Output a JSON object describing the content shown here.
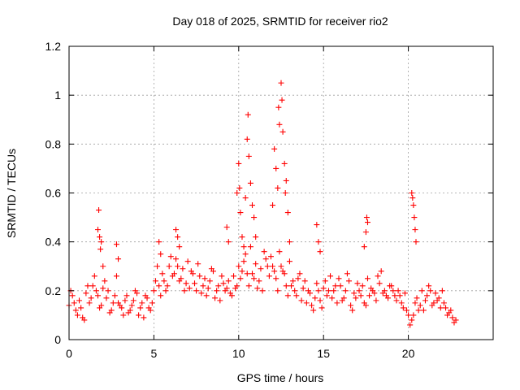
{
  "chart_data": {
    "type": "scatter",
    "title": "Day 018 of 2025, SRMTID for receiver rio2",
    "xlabel": "GPS time / hours",
    "ylabel": "SRMTID / TECUs",
    "xlim": [
      0,
      25
    ],
    "ylim": [
      0,
      1.2
    ],
    "xticks": [
      0,
      5,
      10,
      15,
      20
    ],
    "xtick_labels": [
      "0",
      "5",
      "10",
      "15",
      "20"
    ],
    "yticks": [
      0,
      0.2,
      0.4,
      0.6,
      0.8,
      1,
      1.2
    ],
    "ytick_labels": [
      "0",
      "0.2",
      "0.4",
      "0.6",
      "0.8",
      "1",
      "1.2"
    ],
    "grid": true,
    "marker": "+",
    "series": [
      {
        "name": "SRMTID",
        "color": "#ff0000",
        "x": [
          0.0,
          0.2,
          0.4,
          0.6,
          0.8,
          1.0,
          1.2,
          1.4,
          1.6,
          1.8,
          2.0,
          2.2,
          2.4,
          2.6,
          2.8,
          3.0,
          3.2,
          3.4,
          3.6,
          3.8,
          4.0,
          4.2,
          4.4,
          4.6,
          4.8,
          5.0,
          5.2,
          5.4,
          5.6,
          5.8,
          6.0,
          6.2,
          6.4,
          6.6,
          6.8,
          7.0,
          7.2,
          7.4,
          7.6,
          7.8,
          8.0,
          8.2,
          8.4,
          8.6,
          8.8,
          9.0,
          9.2,
          9.4,
          9.6,
          9.8,
          10.0,
          10.2,
          10.4,
          10.6,
          10.8,
          11.0,
          11.2,
          11.4,
          11.6,
          11.8,
          12.0,
          12.2,
          12.4,
          12.6,
          12.8,
          13.0,
          13.2,
          13.4,
          13.6,
          13.8,
          14.0,
          14.2,
          14.4,
          14.6,
          14.8,
          15.0,
          15.2,
          15.4,
          15.6,
          15.8,
          16.0,
          16.2,
          16.4,
          16.6,
          16.8,
          17.0,
          17.2,
          17.4,
          17.6,
          17.8,
          18.0,
          18.2,
          18.4,
          18.6,
          18.8,
          19.0,
          19.2,
          19.4,
          19.6,
          19.8,
          20.0,
          20.2,
          20.4,
          20.6,
          20.8,
          21.0,
          21.2,
          21.4,
          21.6,
          21.8,
          22.0,
          22.2,
          22.4,
          22.6,
          22.8,
          0.1,
          0.3,
          0.5,
          0.7,
          0.9,
          1.1,
          1.3,
          1.5,
          1.7,
          1.9,
          2.1,
          2.3,
          2.5,
          2.7,
          2.9,
          3.1,
          3.3,
          3.5,
          3.7,
          3.9,
          4.1,
          4.3,
          4.5,
          4.7,
          4.9,
          5.1,
          5.3,
          5.5,
          5.7,
          5.9,
          6.1,
          6.3,
          6.5,
          6.7,
          6.9,
          7.1,
          7.3,
          7.5,
          7.7,
          7.9,
          8.1,
          8.3,
          8.5,
          8.7,
          8.9,
          9.1,
          9.3,
          9.5,
          9.7,
          9.9,
          10.1,
          10.3,
          10.5,
          10.7,
          10.9,
          11.1,
          11.3,
          11.5,
          11.7,
          11.9,
          12.1,
          12.3,
          12.5,
          12.7,
          12.9,
          13.1,
          13.3,
          13.5,
          13.7,
          13.9,
          14.1,
          14.3,
          14.5,
          14.7,
          14.9,
          15.1,
          15.3,
          15.5,
          15.7,
          15.9,
          16.1,
          16.3,
          16.5,
          16.7,
          16.9,
          17.1,
          17.3,
          17.5,
          17.7,
          17.9,
          18.1,
          18.3,
          18.5,
          18.7,
          18.9,
          19.1,
          19.3,
          19.5,
          19.7,
          19.9,
          20.1,
          20.3,
          20.5,
          20.7,
          20.9,
          21.1,
          21.3,
          21.5,
          21.7,
          21.9,
          22.1,
          22.3,
          22.5,
          22.7,
          1.7,
          1.75,
          1.8,
          1.85,
          1.9,
          2.0,
          9.9,
          10.0,
          10.05,
          10.1,
          10.2,
          10.3,
          10.4,
          10.5,
          10.55,
          10.6,
          10.7,
          10.8,
          10.9,
          11.0,
          12.0,
          12.1,
          12.2,
          12.3,
          12.35,
          12.4,
          12.5,
          12.55,
          12.6,
          12.7,
          12.75,
          12.8,
          12.9,
          13.0,
          20.2,
          20.25,
          20.3,
          20.35,
          20.4,
          20.45,
          17.4,
          17.5,
          17.55,
          17.6,
          14.6,
          14.7,
          14.8,
          6.3,
          6.4,
          6.5,
          9.3,
          9.4,
          5.3,
          5.4,
          2.8,
          2.9
        ],
        "y": [
          0.14,
          0.18,
          0.12,
          0.16,
          0.09,
          0.19,
          0.15,
          0.22,
          0.2,
          0.13,
          0.21,
          0.17,
          0.11,
          0.15,
          0.26,
          0.14,
          0.1,
          0.18,
          0.12,
          0.16,
          0.19,
          0.13,
          0.09,
          0.17,
          0.12,
          0.2,
          0.3,
          0.18,
          0.24,
          0.22,
          0.34,
          0.27,
          0.3,
          0.25,
          0.2,
          0.32,
          0.28,
          0.23,
          0.31,
          0.19,
          0.25,
          0.21,
          0.29,
          0.17,
          0.22,
          0.26,
          0.2,
          0.24,
          0.18,
          0.21,
          0.3,
          0.28,
          0.35,
          0.22,
          0.27,
          0.31,
          0.24,
          0.2,
          0.33,
          0.26,
          0.3,
          0.25,
          0.36,
          0.28,
          0.22,
          0.32,
          0.24,
          0.18,
          0.27,
          0.21,
          0.15,
          0.19,
          0.12,
          0.23,
          0.16,
          0.21,
          0.18,
          0.26,
          0.2,
          0.15,
          0.22,
          0.17,
          0.27,
          0.14,
          0.19,
          0.23,
          0.18,
          0.15,
          0.25,
          0.21,
          0.19,
          0.26,
          0.28,
          0.2,
          0.17,
          0.22,
          0.18,
          0.2,
          0.15,
          0.19,
          0.1,
          0.08,
          0.15,
          0.12,
          0.2,
          0.16,
          0.22,
          0.14,
          0.19,
          0.17,
          0.2,
          0.13,
          0.11,
          0.09,
          0.08,
          0.2,
          0.15,
          0.1,
          0.13,
          0.08,
          0.22,
          0.17,
          0.26,
          0.18,
          0.14,
          0.24,
          0.2,
          0.12,
          0.18,
          0.15,
          0.13,
          0.16,
          0.11,
          0.14,
          0.2,
          0.1,
          0.15,
          0.18,
          0.13,
          0.15,
          0.24,
          0.22,
          0.27,
          0.2,
          0.3,
          0.26,
          0.33,
          0.24,
          0.29,
          0.23,
          0.21,
          0.27,
          0.2,
          0.26,
          0.22,
          0.18,
          0.24,
          0.28,
          0.2,
          0.16,
          0.23,
          0.21,
          0.19,
          0.26,
          0.22,
          0.25,
          0.32,
          0.27,
          0.38,
          0.25,
          0.21,
          0.29,
          0.36,
          0.3,
          0.34,
          0.28,
          0.2,
          0.3,
          0.27,
          0.18,
          0.22,
          0.2,
          0.25,
          0.16,
          0.24,
          0.2,
          0.14,
          0.17,
          0.2,
          0.13,
          0.24,
          0.2,
          0.17,
          0.22,
          0.25,
          0.16,
          0.2,
          0.24,
          0.12,
          0.17,
          0.2,
          0.22,
          0.14,
          0.18,
          0.2,
          0.16,
          0.23,
          0.19,
          0.18,
          0.22,
          0.2,
          0.16,
          0.18,
          0.13,
          0.12,
          0.06,
          0.1,
          0.17,
          0.14,
          0.12,
          0.18,
          0.2,
          0.15,
          0.16,
          0.13,
          0.15,
          0.1,
          0.12,
          0.07,
          0.45,
          0.53,
          0.42,
          0.37,
          0.4,
          0.3,
          0.6,
          0.72,
          0.62,
          0.52,
          0.42,
          0.38,
          0.58,
          0.82,
          0.92,
          0.75,
          0.64,
          0.55,
          0.5,
          0.42,
          0.55,
          0.78,
          0.7,
          0.62,
          0.95,
          0.88,
          1.05,
          0.98,
          0.85,
          0.72,
          0.6,
          0.65,
          0.52,
          0.4,
          0.6,
          0.58,
          0.55,
          0.5,
          0.45,
          0.4,
          0.38,
          0.44,
          0.5,
          0.48,
          0.47,
          0.4,
          0.36,
          0.45,
          0.42,
          0.38,
          0.46,
          0.4,
          0.4,
          0.35,
          0.39,
          0.33
        ]
      }
    ]
  }
}
